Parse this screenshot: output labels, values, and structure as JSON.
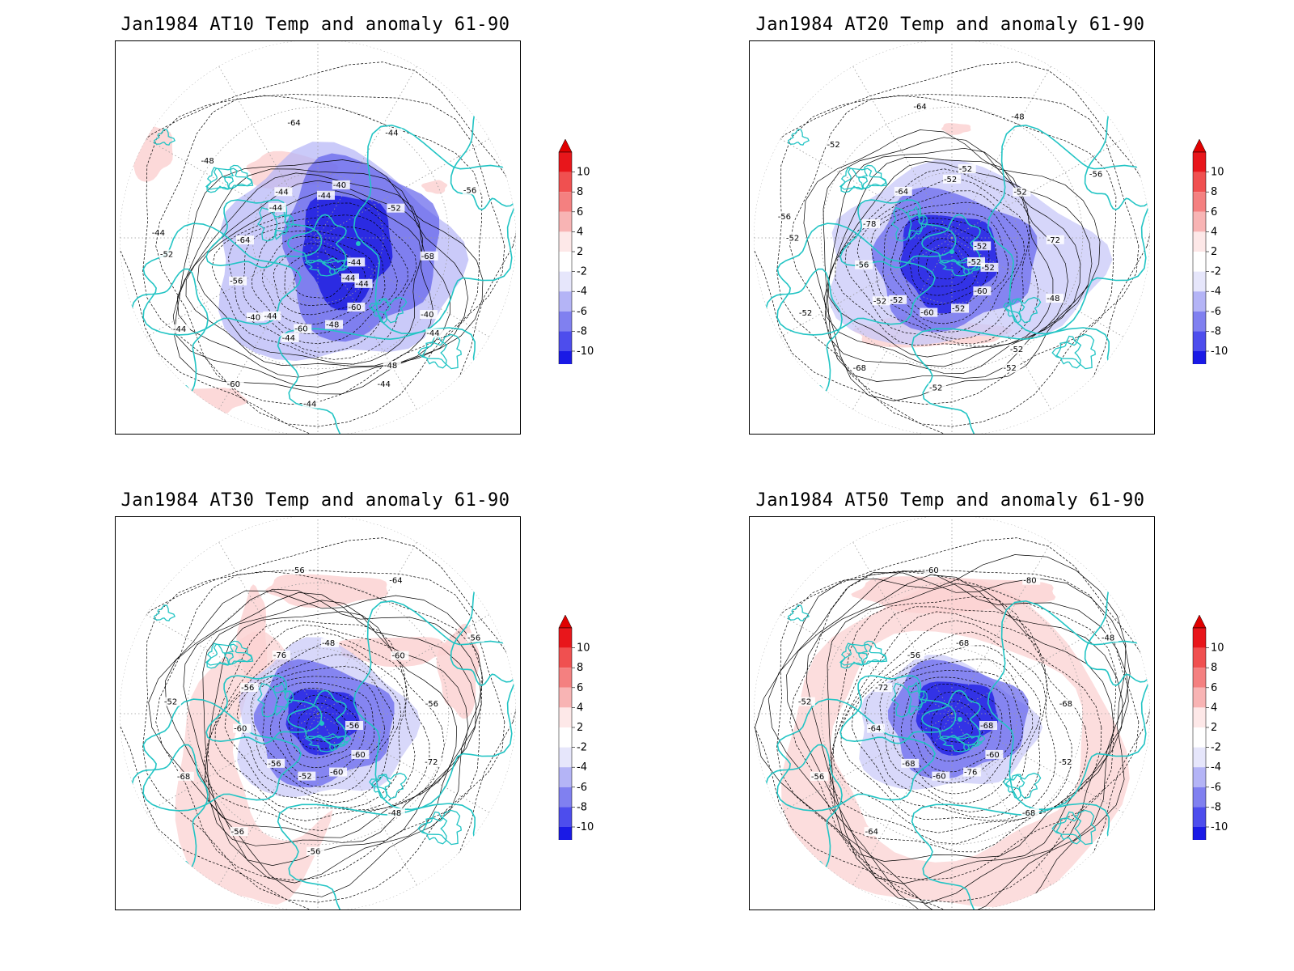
{
  "panels": [
    {
      "title": "Jan1984 AT10 Temp and anomaly 61-90",
      "contour_labels": [
        "-44",
        "-44",
        "-44",
        "-48",
        "-52",
        "-56",
        "-60",
        "-44",
        "-40",
        "-44",
        "-44",
        "-48",
        "-64",
        "-68",
        "-60",
        "-64",
        "-60",
        "-56",
        "-52",
        "-44",
        "-48",
        "-44",
        "-40",
        "-40",
        "-44",
        "-44",
        "-44",
        "-44",
        "-44",
        "-44"
      ]
    },
    {
      "title": "Jan1984 AT20 Temp and anomaly 61-90",
      "contour_labels": [
        "-52",
        "-52",
        "-52",
        "-52",
        "-52",
        "-56",
        "-60",
        "-64",
        "-48",
        "-52",
        "-48",
        "-52",
        "-78",
        "-72",
        "-68",
        "-64",
        "-60",
        "-56",
        "-52",
        "-52",
        "-52",
        "-52",
        "-52",
        "-52",
        "-52",
        "-56",
        "-52"
      ]
    },
    {
      "title": "Jan1984 AT30 Temp and anomaly 61-90",
      "contour_labels": [
        "-56",
        "-56",
        "-48",
        "-48",
        "-52",
        "-56",
        "-52",
        "-76",
        "-72",
        "-68",
        "-64",
        "-60",
        "-56",
        "-56",
        "-56",
        "-56",
        "-60",
        "-60",
        "-60",
        "-56"
      ]
    },
    {
      "title": "Jan1984 AT50 Temp and anomaly 61-90",
      "contour_labels": [
        "-68",
        "-68",
        "-68",
        "-68",
        "-52",
        "-48",
        "-60",
        "-56",
        "-52",
        "-56",
        "-80",
        "-76",
        "-72",
        "-68",
        "-64",
        "-60",
        "-60",
        "-64"
      ]
    }
  ],
  "colorbar": {
    "ticks": [
      "10",
      "8",
      "6",
      "4",
      "2",
      "-2",
      "-4",
      "-6",
      "-8",
      "-10"
    ],
    "colors": [
      "#e8161b",
      "#f05050",
      "#f48080",
      "#f8b4b4",
      "#fde8e8",
      "#ffffff",
      "#e6e6fb",
      "#b4b4f6",
      "#8080f0",
      "#4d4ded",
      "#1a1ae6"
    ],
    "end_high": "#e00000",
    "end_low": "#0000e0"
  },
  "style": {
    "coast_color": "#22c4c4",
    "contour_color": "#000000",
    "grid_color": "#a0a0a0"
  }
}
